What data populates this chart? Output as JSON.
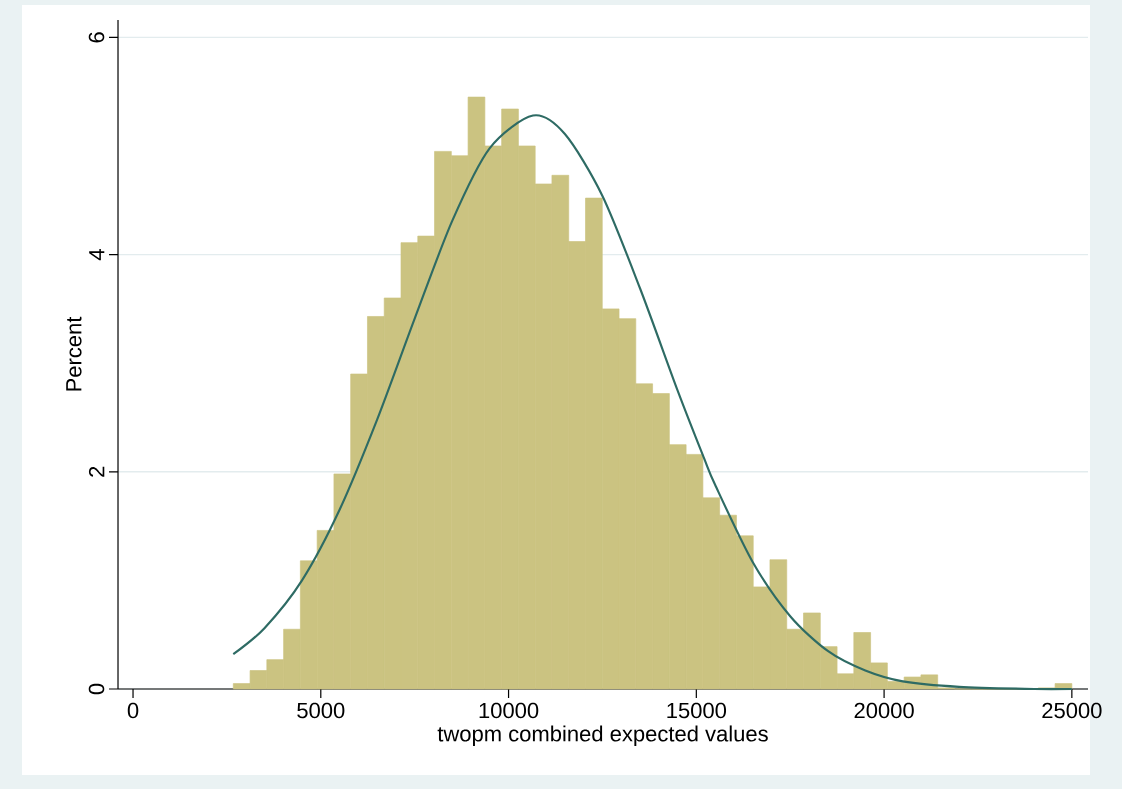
{
  "chart_data": {
    "type": "histogram",
    "xlabel": "twopm combined expected values",
    "ylabel": "Percent",
    "bins": [
      2670,
      3117,
      3563,
      4010,
      4456,
      4903,
      5350,
      5796,
      6243,
      6689,
      7136,
      7583,
      8029,
      8476,
      8922,
      9369,
      9816,
      10262,
      10709,
      11155,
      11602,
      12049,
      12495,
      12942,
      13388,
      13835,
      14282,
      14728,
      15175,
      15621,
      16068,
      16515,
      16961,
      17408,
      17854,
      18301,
      18748,
      19194,
      19641,
      20087,
      20534,
      20981,
      21427,
      21874,
      22320,
      22767,
      23214,
      23660,
      24107,
      24553,
      25000
    ],
    "values": [
      0.05,
      0.17,
      0.27,
      0.55,
      1.18,
      1.46,
      1.98,
      2.9,
      3.43,
      3.6,
      4.11,
      4.17,
      4.95,
      4.91,
      5.45,
      5.0,
      5.34,
      5.0,
      4.65,
      4.73,
      4.12,
      4.52,
      3.5,
      3.41,
      2.81,
      2.72,
      2.25,
      2.16,
      1.76,
      1.6,
      1.41,
      0.94,
      1.19,
      0.55,
      0.7,
      0.39,
      0.14,
      0.52,
      0.24,
      0.07,
      0.11,
      0.13,
      0.01,
      0,
      0,
      0,
      0,
      0,
      0.01,
      0.05
    ],
    "color": "#cbc381",
    "series": [
      {
        "type": "line",
        "color": "#2e6b64",
        "x": [
          2670,
          3500,
          4500,
          5500,
          6500,
          7500,
          8500,
          9500,
          10650,
          11500,
          12500,
          13500,
          14500,
          15200,
          15500,
          16500,
          17500,
          18500,
          19500,
          20500,
          22000,
          24000,
          25000
        ],
        "values": [
          0.32,
          0.56,
          1.0,
          1.65,
          2.48,
          3.41,
          4.31,
          4.98,
          5.28,
          5.11,
          4.54,
          3.69,
          2.75,
          2.13,
          1.88,
          1.17,
          0.67,
          0.35,
          0.17,
          0.07,
          0.02,
          0,
          0
        ]
      }
    ],
    "xlim": [
      -400,
      25430
    ],
    "ylim": [
      0,
      6.16
    ],
    "xticks": [
      0,
      5000,
      10000,
      15000,
      20000,
      25000
    ],
    "yticks": [
      0,
      2,
      4,
      6
    ],
    "grid": "y"
  }
}
